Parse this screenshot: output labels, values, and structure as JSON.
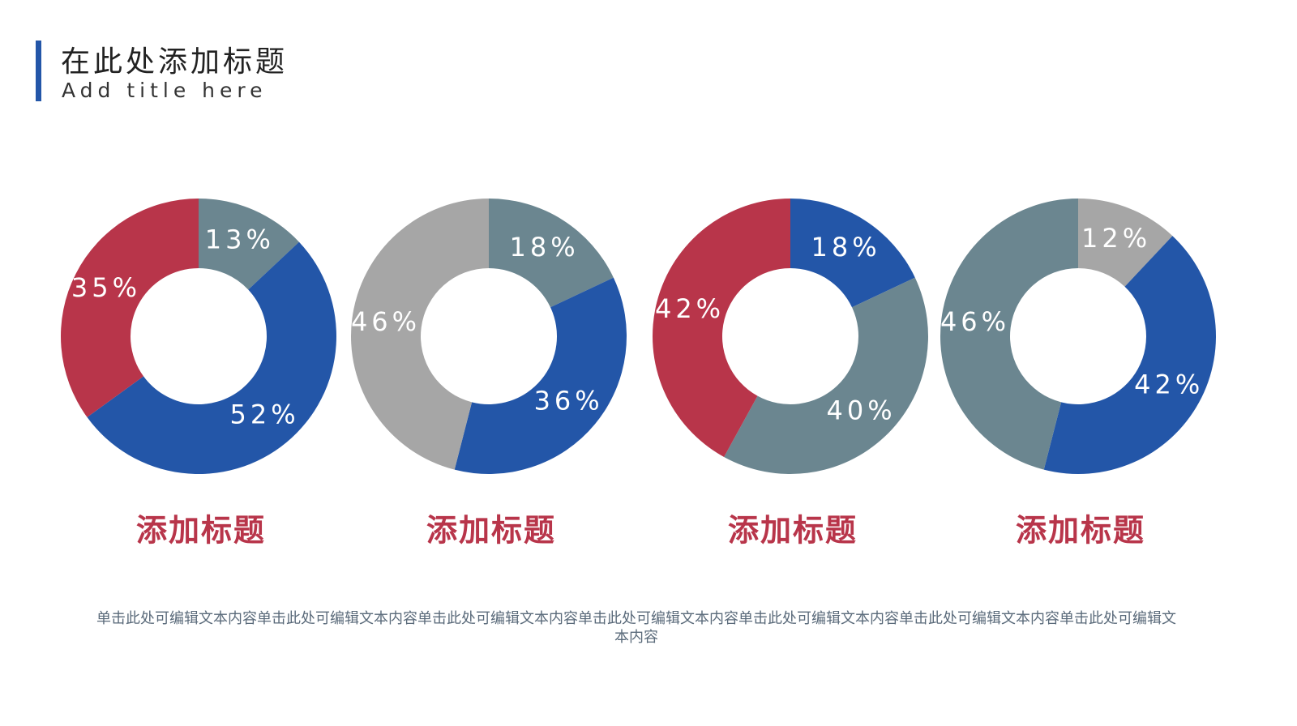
{
  "header": {
    "title": "在此处添加标题",
    "subtitle": "Add title here"
  },
  "chart_data": [
    {
      "type": "pie",
      "title": "添加标题",
      "values": [
        13,
        52,
        35
      ],
      "value_labels": [
        "13%",
        "52%",
        "35%"
      ],
      "colors": [
        "#6b8690",
        "#2356a8",
        "#b8354a"
      ]
    },
    {
      "type": "pie",
      "title": "添加标题",
      "values": [
        18,
        36,
        46
      ],
      "value_labels": [
        "18%",
        "36%",
        "46%"
      ],
      "colors": [
        "#6b8690",
        "#2356a8",
        "#a6a6a6"
      ]
    },
    {
      "type": "pie",
      "title": "添加标题",
      "values": [
        18,
        40,
        42
      ],
      "value_labels": [
        "18%",
        "40%",
        "42%"
      ],
      "colors": [
        "#2356a8",
        "#6b8690",
        "#b8354a"
      ]
    },
    {
      "type": "pie",
      "title": "添加标题",
      "values": [
        12,
        42,
        46
      ],
      "value_labels": [
        "12%",
        "42%",
        "46%"
      ],
      "colors": [
        "#a6a6a6",
        "#2356a8",
        "#6b8690"
      ]
    }
  ],
  "body": {
    "text": "单击此处可编辑文本内容单击此处可编辑文本内容单击此处可编辑文本内容单击此处可编辑文本内容单击此处可编辑文本内容单击此处可编辑文本内容单击此处可编辑文本内容"
  }
}
